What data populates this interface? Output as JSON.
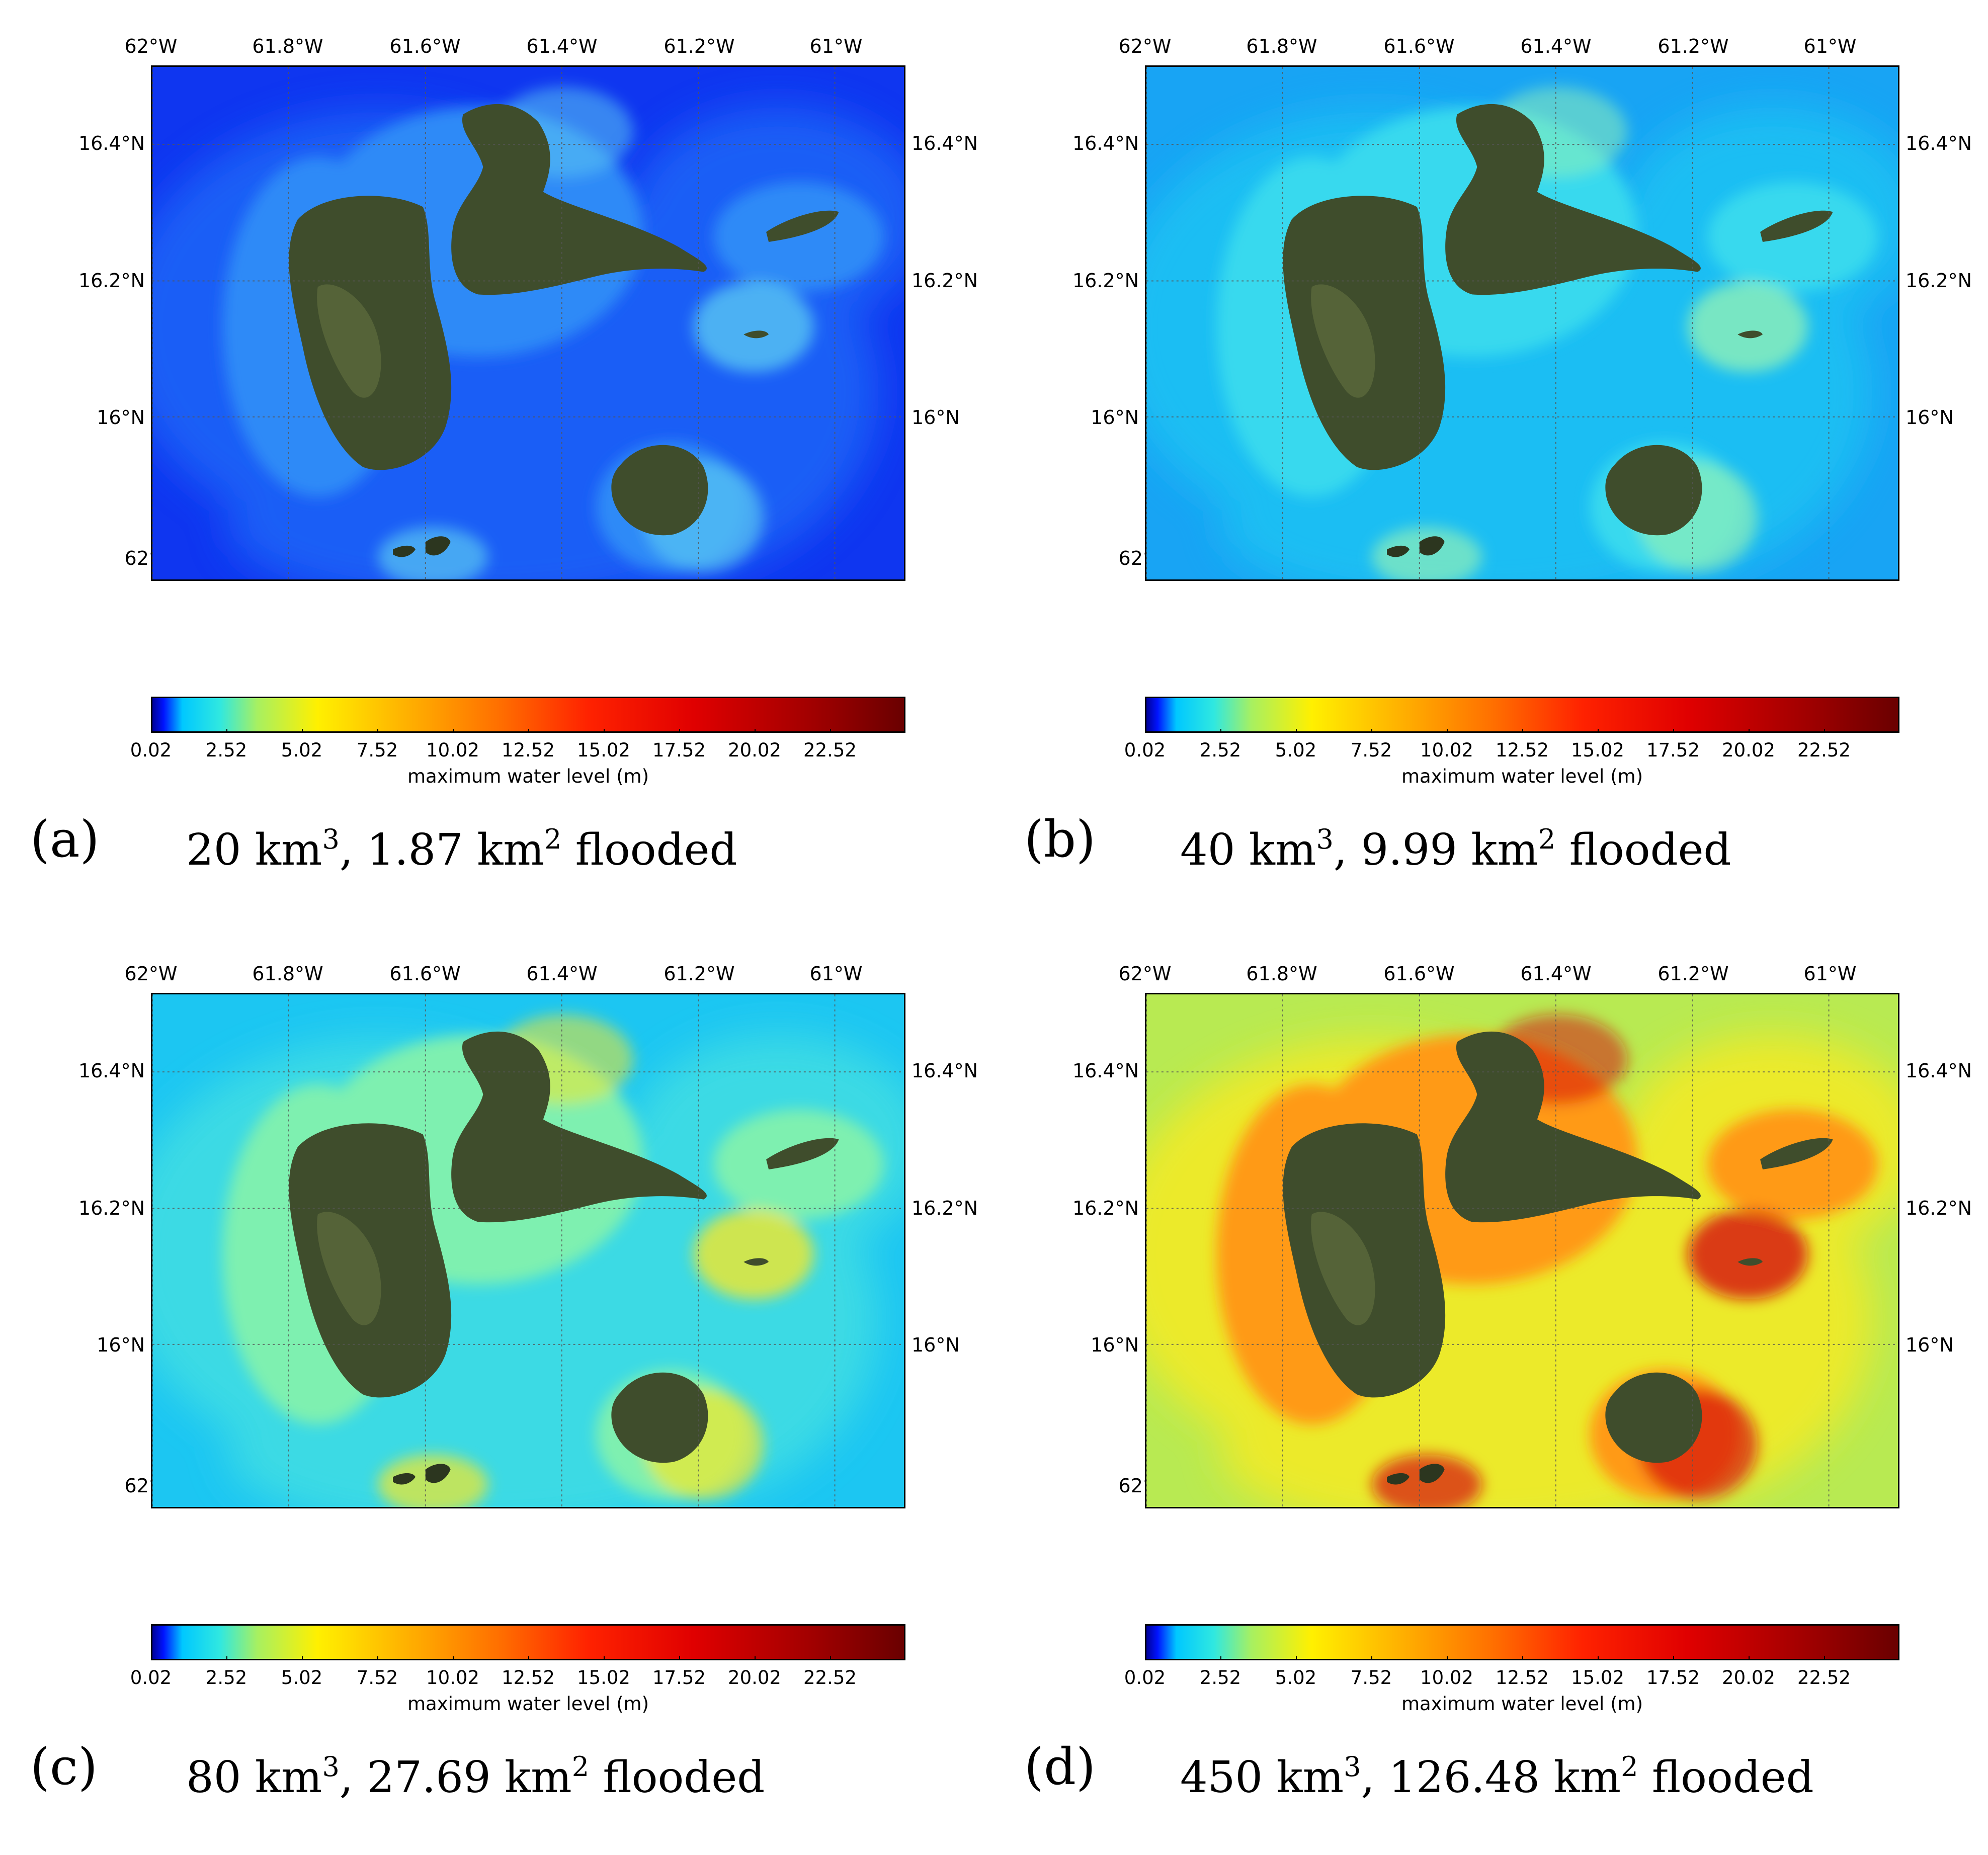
{
  "lon_ticks": [
    "62°W",
    "61.8°W",
    "61.6°W",
    "61.4°W",
    "61.2°W",
    "61°W"
  ],
  "lat_ticks": [
    "16.4°N",
    "16.2°N",
    "16°N"
  ],
  "colorbar": {
    "ticks": [
      "0.02",
      "2.52",
      "5.02",
      "7.52",
      "10.02",
      "12.52",
      "15.02",
      "17.52",
      "20.02",
      "22.52"
    ],
    "label": "maximum water level (m)",
    "min": 0.02,
    "max": 25.02,
    "colormap": "jet-like (blue-cyan-yellow-red-dark red)"
  },
  "panels": [
    {
      "letter": "(a)",
      "volume": "20 km",
      "volume_exp": "3",
      "sep": ", ",
      "area": "1.87 km",
      "area_exp": "2",
      "suffix": " flooded",
      "sea_colors": {
        "base": "#0f36f0",
        "mid": "#1f63f7",
        "coast": "#2f8af7",
        "hot": "#59c6f2"
      }
    },
    {
      "letter": "(b)",
      "volume": "40 km",
      "volume_exp": "3",
      "sep": ", ",
      "area": "9.99 km",
      "area_exp": "2",
      "suffix": " flooded",
      "sea_colors": {
        "base": "#18a4f4",
        "mid": "#1ec1f3",
        "coast": "#37d9ee",
        "hot": "#8ef0b8"
      }
    },
    {
      "letter": "(c)",
      "volume": "80 km",
      "volume_exp": "3",
      "sep": ", ",
      "area": "27.69 km",
      "area_exp": "2",
      "suffix": " flooded",
      "sea_colors": {
        "base": "#1cc6f2",
        "mid": "#3fdde3",
        "coast": "#7ef0b0",
        "hot": "#f3e82a"
      }
    },
    {
      "letter": "(d)",
      "volume": "450 km",
      "volume_exp": "3",
      "sep": ", ",
      "area": "126.48 km",
      "area_exp": "2",
      "suffix": " flooded",
      "sea_colors": {
        "base": "#b8ea52",
        "mid": "#f2ea26",
        "coast": "#ff9a12",
        "hot": "#d61010"
      }
    }
  ]
}
